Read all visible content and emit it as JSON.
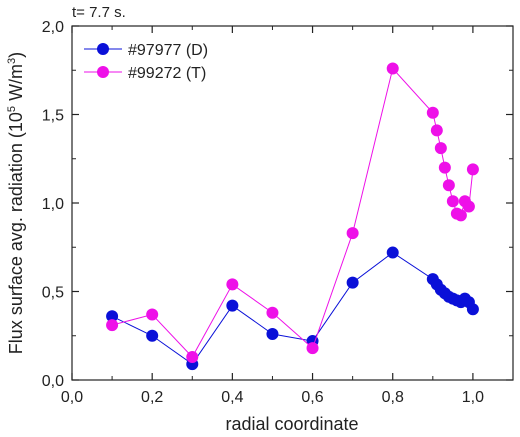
{
  "chart_data": {
    "type": "line",
    "annotation": "t= 7.7 s.",
    "xlabel": "radial coordinate",
    "ylabel_main": "Flux surface avg. radiation (10",
    "ylabel_sup1": "5",
    "ylabel_mid": " W/m",
    "ylabel_sup2": "3",
    "ylabel_end": ")",
    "xlim": [
      0.0,
      1.1
    ],
    "ylim": [
      0.0,
      2.0
    ],
    "xticks": [
      "0,0",
      "0,2",
      "0,4",
      "0,6",
      "0,8",
      "1,0"
    ],
    "xtick_values": [
      0.0,
      0.2,
      0.4,
      0.6,
      0.8,
      1.0
    ],
    "yticks": [
      "0,0",
      "0,5",
      "1,0",
      "1,5",
      "2,0"
    ],
    "ytick_values": [
      0.0,
      0.5,
      1.0,
      1.5,
      2.0
    ],
    "legend_position": "top-left",
    "series": [
      {
        "name": "#97977 (D)",
        "color": "#0a10d8",
        "x": [
          0.1,
          0.2,
          0.3,
          0.4,
          0.5,
          0.6,
          0.7,
          0.8,
          0.9,
          0.91,
          0.92,
          0.93,
          0.94,
          0.95,
          0.96,
          0.97,
          0.98,
          0.99,
          1.0
        ],
        "y": [
          0.36,
          0.25,
          0.09,
          0.42,
          0.26,
          0.22,
          0.55,
          0.72,
          0.57,
          0.54,
          0.51,
          0.49,
          0.47,
          0.46,
          0.45,
          0.44,
          0.46,
          0.44,
          0.4
        ]
      },
      {
        "name": "#99272 (T)",
        "color": "#ee10e8",
        "x": [
          0.1,
          0.2,
          0.3,
          0.4,
          0.5,
          0.6,
          0.7,
          0.8,
          0.9,
          0.91,
          0.92,
          0.93,
          0.94,
          0.95,
          0.96,
          0.97,
          0.98,
          0.99,
          1.0
        ],
        "y": [
          0.31,
          0.37,
          0.13,
          0.54,
          0.38,
          0.18,
          0.83,
          1.76,
          1.51,
          1.41,
          1.31,
          1.2,
          1.1,
          1.01,
          0.94,
          0.93,
          1.01,
          0.98,
          1.19
        ]
      }
    ]
  }
}
